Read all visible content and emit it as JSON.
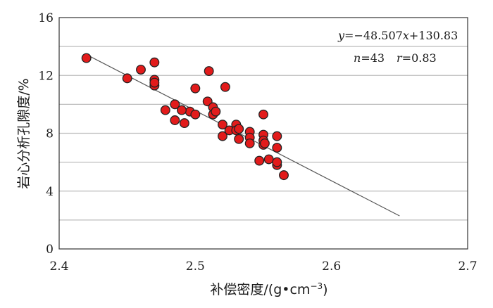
{
  "chart_data": {
    "type": "scatter",
    "xlabel": "补偿密度/(g•cm",
    "xlabel_sup": "−3",
    "xlabel_close": ")",
    "ylabel": "岩心分析孔隙度/%",
    "xlim": [
      2.4,
      2.7
    ],
    "ylim": [
      0,
      16
    ],
    "xticks": [
      2.4,
      2.5,
      2.6,
      2.7
    ],
    "xtick_labels": [
      "2.4",
      "2.5",
      "2.6",
      "2.7"
    ],
    "yticks": [
      0,
      4,
      8,
      12,
      16
    ],
    "ytick_labels": [
      "0",
      "4",
      "8",
      "12",
      "16"
    ],
    "y_gridlines": [
      2,
      4,
      6,
      8,
      10,
      12,
      14
    ],
    "grid": "horizontal",
    "colors": {
      "point_fill": "#e21b1b",
      "point_stroke": "#222222",
      "grid": "#bdbdbd",
      "trend": "#555555"
    },
    "annotation": {
      "eq_y": "y",
      "eq_body": "=−48.507",
      "eq_x": "x",
      "eq_const": "+130.83",
      "n_label": "n",
      "n_value": "=43",
      "r_label": "r",
      "r_value": "=0.83"
    },
    "trendline": {
      "slope": -48.507,
      "intercept": 130.83,
      "x": [
        2.42,
        2.65
      ]
    },
    "points": [
      [
        2.42,
        13.2
      ],
      [
        2.45,
        11.8
      ],
      [
        2.46,
        12.4
      ],
      [
        2.47,
        12.9
      ],
      [
        2.47,
        11.7
      ],
      [
        2.47,
        11.3
      ],
      [
        2.47,
        11.5
      ],
      [
        2.478,
        9.6
      ],
      [
        2.485,
        8.9
      ],
      [
        2.485,
        10.0
      ],
      [
        2.492,
        8.7
      ],
      [
        2.496,
        9.5
      ],
      [
        2.5,
        9.3
      ],
      [
        2.5,
        11.1
      ],
      [
        2.509,
        10.2
      ],
      [
        2.51,
        12.3
      ],
      [
        2.513,
        9.8
      ],
      [
        2.513,
        9.3
      ],
      [
        2.52,
        8.6
      ],
      [
        2.52,
        7.8
      ],
      [
        2.522,
        11.2
      ],
      [
        2.525,
        8.2
      ],
      [
        2.53,
        8.6
      ],
      [
        2.53,
        8.2
      ],
      [
        2.532,
        7.6
      ],
      [
        2.54,
        8.1
      ],
      [
        2.54,
        7.7
      ],
      [
        2.54,
        7.3
      ],
      [
        2.547,
        6.1
      ],
      [
        2.55,
        9.3
      ],
      [
        2.55,
        7.9
      ],
      [
        2.55,
        7.2
      ],
      [
        2.55,
        7.5
      ],
      [
        2.551,
        7.3
      ],
      [
        2.554,
        6.2
      ],
      [
        2.56,
        7.8
      ],
      [
        2.56,
        7.0
      ],
      [
        2.56,
        5.8
      ],
      [
        2.56,
        6.0
      ],
      [
        2.565,
        5.1
      ],
      [
        2.532,
        8.3
      ],
      [
        2.515,
        9.5
      ],
      [
        2.49,
        9.6
      ]
    ]
  }
}
